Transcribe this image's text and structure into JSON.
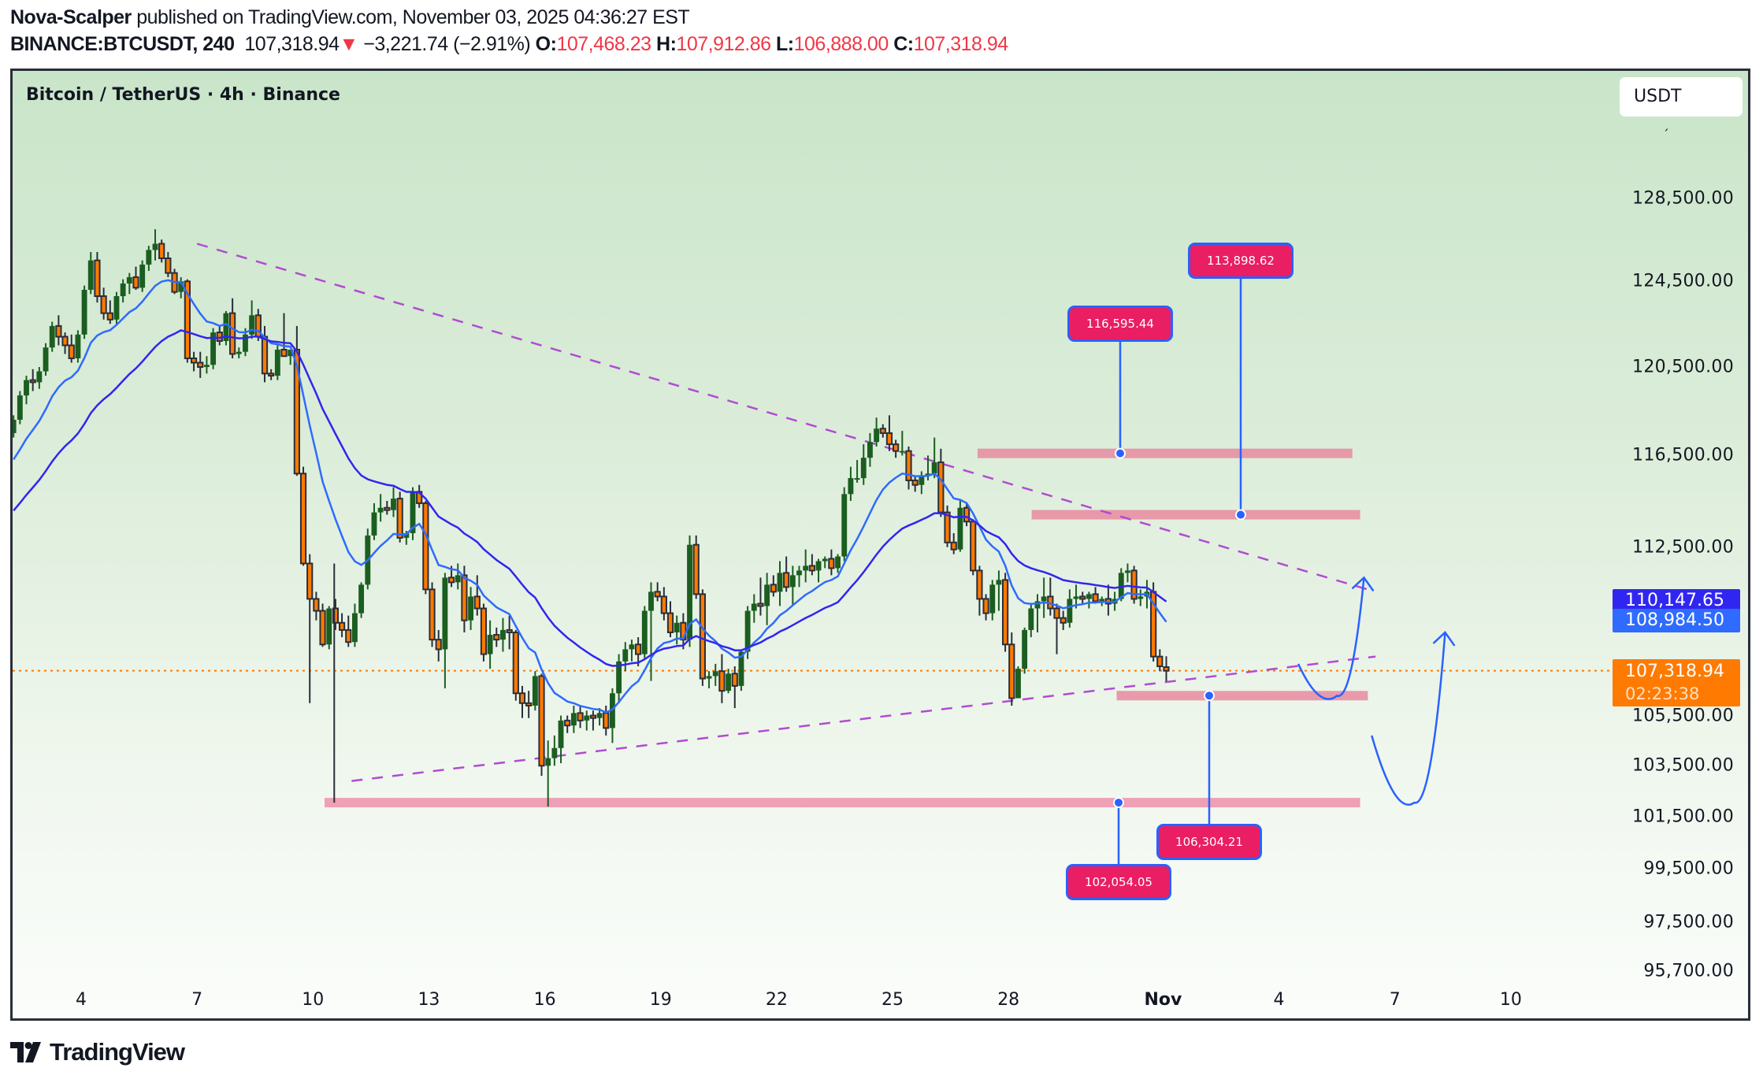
{
  "header": {
    "author": "Nova-Scalper",
    "published_text": "published on TradingView.com, November 03, 2025 04:36:27 EST",
    "symbol": "BINANCE:BTCUSDT, 240",
    "last_price": "107,318.94",
    "change_arrow": "▼",
    "change": "−3,221.74 (−2.91%)",
    "open_label": "O:",
    "open": "107,468.23",
    "high_label": "H:",
    "high": "107,912.86",
    "low_label": "L:",
    "low": "106,888.00",
    "close_label": "C:",
    "close": "107,318.94"
  },
  "chart": {
    "title": "Bitcoin / TetherUS · 4h · Binance",
    "currency_button": "USDT",
    "price_labels": {
      "ma_slow": {
        "value": "110,147.65",
        "color": "#3126f0"
      },
      "ma_fast": {
        "value": "108,984.50",
        "color": "#2f6bff"
      },
      "current": {
        "value": "107,318.94",
        "countdown": "02:23:38",
        "color": "#ff7a00"
      }
    },
    "callouts": [
      {
        "id": "c1",
        "text": "116,595.44"
      },
      {
        "id": "c2",
        "text": "113,898.62"
      },
      {
        "id": "c3",
        "text": "106,304.21"
      },
      {
        "id": "c4",
        "text": "102,054.05"
      }
    ]
  },
  "footer": {
    "brand": "TradingView"
  },
  "chart_data": {
    "type": "candlestick",
    "title": "Bitcoin / TetherUS · 4h · Binance",
    "symbol": "BINANCE:BTCUSDT",
    "interval": "240",
    "xlabel": "",
    "ylabel": "USDT",
    "yscale": "log",
    "ylim": [
      94500,
      131000
    ],
    "x_ticks": [
      "4",
      "7",
      "10",
      "13",
      "16",
      "19",
      "22",
      "25",
      "28",
      "Nov",
      "4",
      "7",
      "10"
    ],
    "y_ticks": [
      "128,500.00",
      "124,500.00",
      "120,500.00",
      "116,500.00",
      "112,500.00",
      "105,500.00",
      "103,500.00",
      "101,500.00",
      "99,500.00",
      "97,500.00",
      "95,700.00"
    ],
    "y_tick_values": [
      128500,
      124500,
      120500,
      116500,
      112500,
      105500,
      103500,
      101500,
      99500,
      97500,
      95700
    ],
    "x_tick_days": [
      4,
      7,
      10,
      13,
      16,
      19,
      22,
      25,
      28,
      32,
      35,
      38,
      41
    ],
    "candle_start_day": 2.25,
    "candles_per_day": 6,
    "candles_ohlc": [
      [
        117500,
        118300,
        117300,
        118100
      ],
      [
        118100,
        119400,
        117900,
        119200
      ],
      [
        119200,
        120100,
        118800,
        119900
      ],
      [
        119900,
        120400,
        119400,
        119800
      ],
      [
        119800,
        120500,
        119500,
        120300
      ],
      [
        120300,
        121600,
        120100,
        121400
      ],
      [
        121400,
        122600,
        121200,
        122400
      ],
      [
        122400,
        122900,
        121500,
        121900
      ],
      [
        121900,
        122100,
        121100,
        121500
      ],
      [
        121500,
        122000,
        120700,
        120900
      ],
      [
        120900,
        122200,
        120700,
        122000
      ],
      [
        122000,
        124300,
        121800,
        124100
      ],
      [
        124100,
        125900,
        123900,
        125500
      ],
      [
        125500,
        125900,
        123500,
        123800
      ],
      [
        123800,
        124200,
        122700,
        123000
      ],
      [
        123000,
        123600,
        122500,
        122700
      ],
      [
        122700,
        124000,
        122500,
        123800
      ],
      [
        123800,
        124600,
        123500,
        124400
      ],
      [
        124400,
        124900,
        123900,
        124700
      ],
      [
        124700,
        125200,
        124100,
        124200
      ],
      [
        124200,
        125500,
        124000,
        125300
      ],
      [
        125300,
        126200,
        125000,
        126000
      ],
      [
        126000,
        127000,
        125500,
        126300
      ],
      [
        126300,
        126500,
        125400,
        125600
      ],
      [
        125600,
        125900,
        124700,
        124900
      ],
      [
        124900,
        125100,
        123900,
        124000
      ],
      [
        124000,
        124700,
        123700,
        124500
      ],
      [
        124500,
        124600,
        120700,
        120900
      ],
      [
        120900,
        121200,
        120300,
        120700
      ],
      [
        120700,
        121200,
        120000,
        120500
      ],
      [
        120500,
        121000,
        120200,
        120600
      ],
      [
        120600,
        122300,
        120400,
        122100
      ],
      [
        122100,
        122400,
        121500,
        121700
      ],
      [
        121700,
        123100,
        121500,
        123000
      ],
      [
        123000,
        123700,
        120900,
        121100
      ],
      [
        121100,
        121400,
        120900,
        121200
      ],
      [
        121200,
        122300,
        121000,
        122000
      ],
      [
        122000,
        123600,
        121800,
        122900
      ],
      [
        122900,
        123200,
        121700,
        121900
      ],
      [
        121900,
        122400,
        119800,
        120200
      ],
      [
        120200,
        120400,
        119900,
        120100
      ],
      [
        120100,
        121500,
        119900,
        121300
      ],
      [
        121300,
        123000,
        121200,
        121000
      ],
      [
        121000,
        121300,
        120600,
        121300
      ],
      [
        121300,
        122400,
        115600,
        115700
      ],
      [
        115700,
        116000,
        111700,
        111800
      ],
      [
        111800,
        112200,
        106000,
        110300
      ],
      [
        110300,
        110600,
        109400,
        109800
      ],
      [
        109800,
        110100,
        108300,
        108400
      ],
      [
        108400,
        110000,
        108200,
        109900
      ],
      [
        109900,
        110300,
        109000,
        109300
      ],
      [
        109300,
        109700,
        108700,
        109000
      ],
      [
        109000,
        109600,
        108300,
        108500
      ],
      [
        108500,
        110100,
        108300,
        109700
      ],
      [
        109700,
        111000,
        109500,
        110900
      ],
      [
        110900,
        113300,
        110700,
        113000
      ],
      [
        113000,
        114400,
        112800,
        114000
      ],
      [
        114000,
        114800,
        113600,
        114200
      ],
      [
        114200,
        114500,
        113900,
        114100
      ],
      [
        114100,
        115100,
        113800,
        114600
      ],
      [
        114600,
        114900,
        112700,
        112900
      ],
      [
        112900,
        113200,
        112600,
        113100
      ],
      [
        113100,
        115100,
        112800,
        114900
      ],
      [
        114900,
        115200,
        114200,
        114400
      ],
      [
        114400,
        114500,
        110500,
        110700
      ],
      [
        110700,
        111000,
        108300,
        108600
      ],
      [
        108600,
        109000,
        107700,
        108200
      ],
      [
        108200,
        111400,
        106600,
        111200
      ],
      [
        111200,
        111700,
        110800,
        111000
      ],
      [
        111000,
        111800,
        110700,
        111300
      ],
      [
        111300,
        111700,
        108900,
        109400
      ],
      [
        109400,
        110800,
        109000,
        110400
      ],
      [
        110400,
        111300,
        109600,
        109900
      ],
      [
        109900,
        110100,
        107700,
        108000
      ],
      [
        108000,
        109400,
        107400,
        108800
      ],
      [
        108800,
        109100,
        108300,
        108600
      ],
      [
        108600,
        109500,
        108100,
        109000
      ],
      [
        109000,
        109600,
        108200,
        108900
      ],
      [
        108900,
        109000,
        106100,
        106400
      ],
      [
        106400,
        106700,
        105400,
        106000
      ],
      [
        106000,
        106500,
        105400,
        105900
      ],
      [
        105900,
        107300,
        105700,
        107100
      ],
      [
        107100,
        107200,
        103100,
        103500
      ],
      [
        103500,
        104500,
        101900,
        103800
      ],
      [
        103800,
        104700,
        103500,
        104200
      ],
      [
        104200,
        105500,
        103600,
        105300
      ],
      [
        105300,
        105500,
        104800,
        105100
      ],
      [
        105100,
        105900,
        104800,
        105600
      ],
      [
        105600,
        105900,
        105000,
        105300
      ],
      [
        105300,
        105700,
        104900,
        105500
      ],
      [
        105500,
        105700,
        104900,
        105400
      ],
      [
        105400,
        105800,
        105100,
        105600
      ],
      [
        105600,
        105900,
        104700,
        105000
      ],
      [
        105000,
        106600,
        104400,
        106400
      ],
      [
        106400,
        108000,
        106000,
        107700
      ],
      [
        107700,
        108500,
        107300,
        108200
      ],
      [
        108200,
        108600,
        107700,
        108400
      ],
      [
        108400,
        108700,
        107500,
        108000
      ],
      [
        108000,
        110000,
        107800,
        109800
      ],
      [
        109800,
        111000,
        106900,
        110600
      ],
      [
        110600,
        111000,
        110200,
        110400
      ],
      [
        110400,
        110800,
        109400,
        109700
      ],
      [
        109700,
        110200,
        108700,
        108900
      ],
      [
        108900,
        109600,
        108400,
        109300
      ],
      [
        109300,
        109700,
        108200,
        108600
      ],
      [
        108600,
        113000,
        108300,
        112600
      ],
      [
        112600,
        113000,
        110300,
        110500
      ],
      [
        110500,
        110700,
        106700,
        107000
      ],
      [
        107000,
        107300,
        106600,
        107100
      ],
      [
        107100,
        107600,
        106700,
        107300
      ],
      [
        107300,
        108000,
        106000,
        106500
      ],
      [
        106500,
        107400,
        106400,
        107200
      ],
      [
        107200,
        107500,
        105800,
        106700
      ],
      [
        106700,
        108200,
        106500,
        108100
      ],
      [
        108100,
        110000,
        107800,
        109800
      ],
      [
        109800,
        110500,
        109300,
        110100
      ],
      [
        110100,
        111200,
        109600,
        110000
      ],
      [
        110000,
        111400,
        109200,
        110900
      ],
      [
        110900,
        111300,
        110400,
        110600
      ],
      [
        110600,
        111900,
        110000,
        111400
      ],
      [
        111400,
        112100,
        110600,
        110800
      ],
      [
        110800,
        111700,
        110000,
        111300
      ],
      [
        111300,
        111700,
        110800,
        111500
      ],
      [
        111500,
        112400,
        111000,
        111700
      ],
      [
        111700,
        112200,
        111300,
        111500
      ],
      [
        111500,
        112000,
        111000,
        111900
      ],
      [
        111900,
        112100,
        111600,
        112000
      ],
      [
        112000,
        112400,
        111300,
        111600
      ],
      [
        111600,
        112200,
        111400,
        112100
      ],
      [
        112100,
        115100,
        111900,
        114800
      ],
      [
        114800,
        116000,
        114500,
        115500
      ],
      [
        115500,
        116300,
        115300,
        115500
      ],
      [
        115500,
        117000,
        115200,
        116400
      ],
      [
        116400,
        117500,
        116000,
        117100
      ],
      [
        117100,
        118200,
        116900,
        117700
      ],
      [
        117700,
        117900,
        117300,
        117500
      ],
      [
        117500,
        118300,
        116700,
        117000
      ],
      [
        117000,
        117200,
        116400,
        116700
      ],
      [
        116700,
        117600,
        116500,
        116700
      ],
      [
        116700,
        116900,
        115000,
        115400
      ],
      [
        115400,
        115600,
        114900,
        115200
      ],
      [
        115200,
        115800,
        114800,
        115600
      ],
      [
        115600,
        116500,
        115400,
        115700
      ],
      [
        115700,
        117300,
        115500,
        116200
      ],
      [
        116200,
        116800,
        113800,
        114000
      ],
      [
        114000,
        114300,
        112500,
        112700
      ],
      [
        112700,
        113100,
        112200,
        112400
      ],
      [
        112400,
        114500,
        112300,
        114200
      ],
      [
        114200,
        114400,
        113400,
        113600
      ],
      [
        113600,
        113700,
        111300,
        111500
      ],
      [
        111500,
        111700,
        109600,
        110300
      ],
      [
        110300,
        110500,
        109400,
        109700
      ],
      [
        109700,
        111100,
        109400,
        110900
      ],
      [
        110900,
        111500,
        109800,
        111100
      ],
      [
        111100,
        111400,
        108100,
        108400
      ],
      [
        108400,
        108900,
        105900,
        106200
      ],
      [
        106200,
        107500,
        106200,
        107400
      ],
      [
        107400,
        109100,
        107200,
        109000
      ],
      [
        109000,
        110100,
        108700,
        109900
      ],
      [
        109900,
        110500,
        108900,
        110200
      ],
      [
        110200,
        111200,
        109500,
        110400
      ],
      [
        110400,
        111200,
        109600,
        109900
      ],
      [
        109900,
        110100,
        108000,
        109500
      ],
      [
        109500,
        109800,
        109000,
        109300
      ],
      [
        109300,
        110700,
        109100,
        110300
      ],
      [
        110300,
        110900,
        109900,
        110400
      ],
      [
        110400,
        110600,
        110100,
        110300
      ],
      [
        110300,
        110600,
        109900,
        110500
      ],
      [
        110500,
        110800,
        110100,
        110200
      ],
      [
        110200,
        110400,
        110000,
        110300
      ],
      [
        110300,
        110900,
        109600,
        110100
      ],
      [
        110100,
        110600,
        109800,
        110300
      ],
      [
        110300,
        111600,
        110200,
        111400
      ],
      [
        111400,
        111800,
        111000,
        111500
      ],
      [
        111500,
        111700,
        110100,
        110300
      ],
      [
        110300,
        110700,
        110000,
        110400
      ],
      [
        110400,
        111100,
        109900,
        110600
      ],
      [
        110600,
        111000,
        107700,
        107900
      ],
      [
        107900,
        108200,
        107300,
        107500
      ],
      [
        107468,
        107912,
        106888,
        107318
      ]
    ],
    "moving_averages": [
      {
        "name": "MA fast",
        "color": "#2f6bff",
        "last": 108984.5
      },
      {
        "name": "MA slow",
        "color": "#3126f0",
        "last": 110147.65
      }
    ],
    "horizontal_zones": [
      {
        "price": 116595.44,
        "from_day": 27.2,
        "to_day": 36.9,
        "color": "#e88aa0"
      },
      {
        "price": 113898.62,
        "from_day": 28.6,
        "to_day": 37.1,
        "color": "#e88aa0"
      },
      {
        "price": 106304.21,
        "from_day": 30.8,
        "to_day": 37.3,
        "color": "#e88aa0"
      },
      {
        "price": 102054.05,
        "from_day": 10.3,
        "to_day": 37.1,
        "color": "#ee8fab"
      }
    ],
    "trendlines": [
      {
        "style": "dashed",
        "color": "#b24bd1",
        "from": [
          7.0,
          126300
        ],
        "to": [
          37.5,
          110600
        ]
      },
      {
        "style": "dashed",
        "color": "#b24bd1",
        "from": [
          11.0,
          102900
        ],
        "to": [
          37.5,
          107900
        ]
      }
    ],
    "current_price_line": {
      "price": 107318.94,
      "color": "#ff7a00",
      "style": "dotted"
    },
    "projections": [
      {
        "type": "curved-arrow",
        "color": "#2962ff",
        "points": [
          [
            35.5,
            107600
          ],
          [
            36.5,
            106300
          ],
          [
            37.2,
            111200
          ]
        ]
      },
      {
        "type": "curved-arrow",
        "color": "#2962ff",
        "points": [
          [
            37.4,
            104700
          ],
          [
            38.5,
            102054
          ],
          [
            39.3,
            108900
          ]
        ]
      }
    ],
    "annotations": [
      "116,595.44",
      "113,898.62",
      "106,304.21",
      "102,054.05"
    ]
  }
}
